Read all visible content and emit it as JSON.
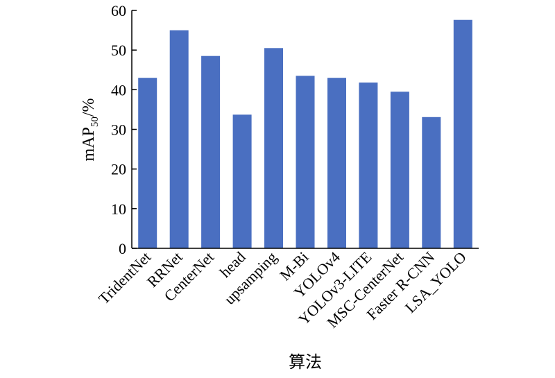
{
  "chart_data": {
    "type": "bar",
    "categories": [
      "TridentNet",
      "RRNet",
      "CenterNet",
      "head",
      "upsamping",
      "M-Bi",
      "YOLOv4",
      "YOLOv3-LITE",
      "MSC-CenterNet",
      "Faster R-CNN",
      "LSA_YOLO"
    ],
    "values": [
      43.0,
      55.0,
      48.5,
      33.7,
      50.5,
      43.5,
      43.0,
      41.8,
      39.5,
      33.1,
      57.6
    ],
    "ylim": [
      0,
      60
    ],
    "yticks": [
      0,
      10,
      20,
      30,
      40,
      50,
      60
    ],
    "xlabel": "算法",
    "ylabel": {
      "main": "mAP",
      "subscript": "50",
      "suffix": "/%"
    },
    "bar_color": "#4a6fc1",
    "grid": false,
    "legend": "none"
  }
}
